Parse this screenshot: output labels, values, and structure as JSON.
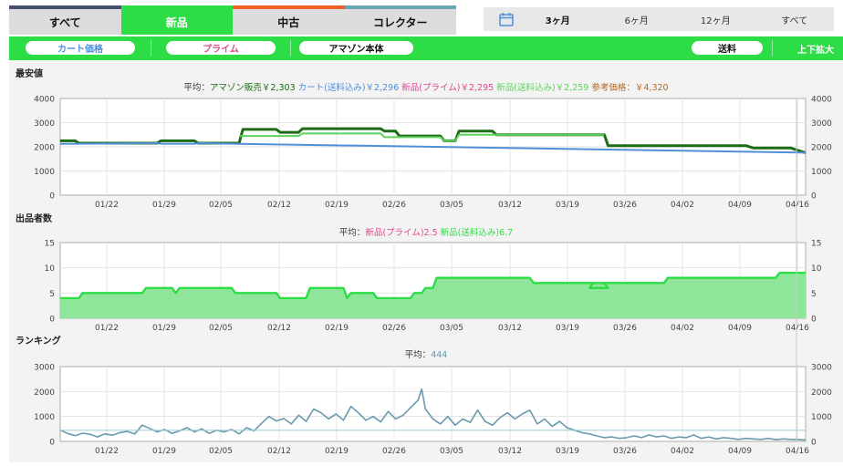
{
  "tabs": [
    {
      "label": "すべて",
      "active": false
    },
    {
      "label": "新品",
      "active": true
    },
    {
      "label": "中古",
      "active": false
    },
    {
      "label": "コレクター",
      "active": false
    }
  ],
  "ranges": [
    {
      "label": "3ヶ月",
      "active": true
    },
    {
      "label": "6ヶ月",
      "active": false
    },
    {
      "label": "12ヶ月",
      "active": false
    },
    {
      "label": "すべて",
      "active": false
    }
  ],
  "filters": {
    "cart": "カート価格",
    "prime": "プライム",
    "amazon": "アマゾン本体",
    "shipping": "送料",
    "expand": "上下拡大"
  },
  "colors": {
    "green": "#2cdd45",
    "prime": "#e0488f",
    "cart": "#4f8fd8",
    "dark_green": "#1c6b16",
    "rank": "#6a9aab"
  },
  "x_ticks": [
    "01/22",
    "01/29",
    "02/05",
    "02/12",
    "02/19",
    "02/26",
    "03/05",
    "03/12",
    "03/19",
    "03/26",
    "04/02",
    "04/09",
    "04/16"
  ],
  "chart_data": [
    {
      "type": "line",
      "title": "最安値",
      "legend_prefix": "平均：",
      "ylim": [
        0,
        4000
      ],
      "y_ticks": [
        "4000",
        "3000",
        "2000",
        "1000",
        "0"
      ],
      "series": [
        {
          "name": "アマゾン販売",
          "label": "アマゾン販売￥2,303",
          "color": "#1c6b16",
          "points": [
            [
              0,
              2250
            ],
            [
              2,
              2250
            ],
            [
              2.5,
              2150
            ],
            [
              13,
              2150
            ],
            [
              13.5,
              2250
            ],
            [
              18,
              2250
            ],
            [
              18.5,
              2150
            ],
            [
              24,
              2150
            ],
            [
              24.5,
              2720
            ],
            [
              29,
              2720
            ],
            [
              29.5,
              2600
            ],
            [
              32,
              2600
            ],
            [
              32.5,
              2750
            ],
            [
              43,
              2750
            ],
            [
              43.5,
              2650
            ],
            [
              45,
              2650
            ],
            [
              45.5,
              2450
            ],
            [
              51,
              2450
            ],
            [
              51.5,
              2250
            ],
            [
              53,
              2250
            ],
            [
              53.5,
              2650
            ],
            [
              58,
              2650
            ],
            [
              58.5,
              2500
            ],
            [
              73,
              2500
            ],
            [
              73.5,
              2050
            ],
            [
              92,
              2050
            ],
            [
              93,
              1950
            ],
            [
              98,
              1950
            ],
            [
              100,
              1750
            ]
          ]
        },
        {
          "name": "カート(送料込み)",
          "label": "カート(送料込み)￥2,296",
          "color": "#4f8fd8",
          "points": [
            [
              0,
              2120
            ],
            [
              13,
              2150
            ],
            [
              13.5,
              2130
            ],
            [
              18,
              2130
            ],
            [
              18.5,
              2150
            ],
            [
              100,
              1760
            ]
          ]
        },
        {
          "name": "新品(プライム)",
          "label": "新品(プライム)￥2,295",
          "color": "#e0488f",
          "points": []
        },
        {
          "name": "新品(送料込み)",
          "label": "新品(送料込み)￥2,259",
          "color": "#5cd35c",
          "points": [
            [
              24,
              2450
            ],
            [
              32,
              2450
            ],
            [
              32.5,
              2550
            ],
            [
              43,
              2550
            ],
            [
              43.5,
              2400
            ],
            [
              51,
              2400
            ],
            [
              51.5,
              2250
            ],
            [
              53,
              2250
            ],
            [
              53.5,
              2500
            ],
            [
              73,
              2500
            ]
          ]
        },
        {
          "name": "参考価格",
          "label": "参考価格：￥4,320",
          "color": "#b06a2a",
          "points": []
        }
      ]
    },
    {
      "type": "area",
      "title": "出品者数",
      "legend_prefix": "平均：",
      "ylim": [
        0,
        15
      ],
      "y_ticks": [
        "15",
        "10",
        "5",
        "0"
      ],
      "series": [
        {
          "name": "新品(プライム)",
          "label": "新品(プライム)2.5",
          "color": "#e0488f",
          "points": [
            [
              0,
              2
            ],
            [
              29,
              2
            ],
            [
              29.5,
              1
            ],
            [
              34,
              1
            ],
            [
              34.5,
              2
            ],
            [
              36,
              2
            ],
            [
              36.5,
              1
            ],
            [
              49,
              1
            ],
            [
              49.5,
              2
            ],
            [
              71,
              2
            ],
            [
              71.5,
              3
            ],
            [
              81,
              3
            ],
            [
              81.5,
              4
            ],
            [
              96,
              4
            ],
            [
              96.5,
              3
            ],
            [
              97.5,
              3
            ],
            [
              98,
              4
            ],
            [
              100,
              4
            ]
          ]
        },
        {
          "name": "新品(送料込み)",
          "label": "新品(送料込み)6.7",
          "color": "#2cdd45",
          "points": [
            [
              0,
              4
            ],
            [
              2.5,
              4
            ],
            [
              3,
              5
            ],
            [
              11,
              5
            ],
            [
              11.5,
              6
            ],
            [
              15,
              6
            ],
            [
              15.5,
              5
            ],
            [
              16,
              6
            ],
            [
              23,
              6
            ],
            [
              23.5,
              5
            ],
            [
              29,
              5
            ],
            [
              29.5,
              4
            ],
            [
              33,
              4
            ],
            [
              33.5,
              6
            ],
            [
              38,
              6
            ],
            [
              38.5,
              4
            ],
            [
              39,
              5
            ],
            [
              42,
              5
            ],
            [
              42.5,
              4
            ],
            [
              47,
              4
            ],
            [
              47.5,
              5
            ],
            [
              48.5,
              5
            ],
            [
              49,
              6
            ],
            [
              50,
              6
            ],
            [
              50.5,
              8
            ],
            [
              63,
              8
            ],
            [
              63.5,
              7
            ],
            [
              73,
              7
            ],
            [
              73.5,
              6
            ],
            [
              71,
              6
            ],
            [
              71.5,
              7
            ],
            [
              81,
              7
            ],
            [
              81.5,
              8
            ],
            [
              96,
              8
            ],
            [
              96.5,
              9
            ],
            [
              100,
              9
            ]
          ]
        }
      ]
    },
    {
      "type": "line",
      "title": "ランキング",
      "legend_prefix": "平均：",
      "ylim": [
        0,
        3000
      ],
      "y_ticks": [
        "3000",
        "2000",
        "1000",
        "0"
      ],
      "series": [
        {
          "name": "ランキング",
          "label": "444",
          "color": "#6a9aab",
          "points": [
            [
              0,
              450
            ],
            [
              1,
              320
            ],
            [
              2,
              230
            ],
            [
              3,
              330
            ],
            [
              4,
              280
            ],
            [
              5,
              180
            ],
            [
              6,
              300
            ],
            [
              7,
              250
            ],
            [
              8,
              350
            ],
            [
              9,
              400
            ],
            [
              10,
              300
            ],
            [
              11,
              650
            ],
            [
              12,
              520
            ],
            [
              13,
              380
            ],
            [
              14,
              480
            ],
            [
              15,
              320
            ],
            [
              16,
              420
            ],
            [
              17,
              550
            ],
            [
              18,
              380
            ],
            [
              19,
              500
            ],
            [
              20,
              320
            ],
            [
              21,
              450
            ],
            [
              22,
              380
            ],
            [
              23,
              480
            ],
            [
              24,
              300
            ],
            [
              25,
              550
            ],
            [
              26,
              420
            ],
            [
              27,
              720
            ],
            [
              28,
              1000
            ],
            [
              29,
              820
            ],
            [
              30,
              920
            ],
            [
              31,
              700
            ],
            [
              32,
              1050
            ],
            [
              33,
              800
            ],
            [
              34,
              1300
            ],
            [
              35,
              1150
            ],
            [
              36,
              900
            ],
            [
              37,
              1100
            ],
            [
              38,
              850
            ],
            [
              39,
              1400
            ],
            [
              40,
              1150
            ],
            [
              41,
              850
            ],
            [
              42,
              1000
            ],
            [
              43,
              780
            ],
            [
              44,
              1200
            ],
            [
              45,
              900
            ],
            [
              46,
              1050
            ],
            [
              47,
              1350
            ],
            [
              48,
              1650
            ],
            [
              48.5,
              2100
            ],
            [
              49,
              1300
            ],
            [
              50,
              900
            ],
            [
              51,
              700
            ],
            [
              52,
              1000
            ],
            [
              53,
              650
            ],
            [
              54,
              900
            ],
            [
              55,
              760
            ],
            [
              56,
              1250
            ],
            [
              57,
              800
            ],
            [
              58,
              650
            ],
            [
              59,
              950
            ],
            [
              60,
              1150
            ],
            [
              61,
              900
            ],
            [
              62,
              1100
            ],
            [
              63,
              1250
            ],
            [
              64,
              700
            ],
            [
              65,
              900
            ],
            [
              66,
              600
            ],
            [
              67,
              800
            ],
            [
              68,
              550
            ],
            [
              69,
              450
            ],
            [
              70,
              350
            ],
            [
              71,
              300
            ],
            [
              72,
              220
            ],
            [
              73,
              150
            ],
            [
              74,
              180
            ],
            [
              75,
              120
            ],
            [
              76,
              150
            ],
            [
              77,
              220
            ],
            [
              78,
              150
            ],
            [
              79,
              260
            ],
            [
              80,
              180
            ],
            [
              81,
              220
            ],
            [
              82,
              120
            ],
            [
              83,
              180
            ],
            [
              84,
              150
            ],
            [
              85,
              260
            ],
            [
              86,
              120
            ],
            [
              87,
              180
            ],
            [
              88,
              100
            ],
            [
              89,
              150
            ],
            [
              90,
              120
            ],
            [
              91,
              80
            ],
            [
              92,
              120
            ],
            [
              93,
              100
            ],
            [
              94,
              80
            ],
            [
              95,
              120
            ],
            [
              96,
              70
            ],
            [
              97,
              100
            ],
            [
              98,
              80
            ],
            [
              99,
              70
            ],
            [
              100,
              60
            ]
          ]
        }
      ]
    }
  ]
}
